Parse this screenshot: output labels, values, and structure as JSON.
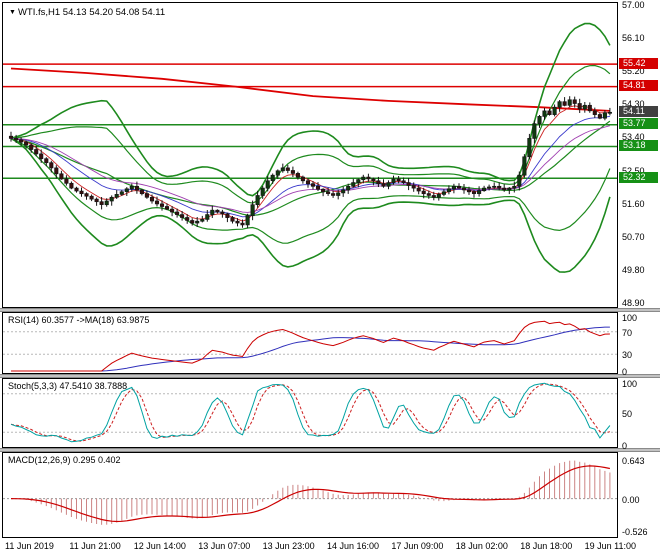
{
  "title": {
    "marker": "▼",
    "text": "WTI.fs,H1 54.13 54.20 54.08 54.11"
  },
  "colors": {
    "background": "#ffffff",
    "border": "#000000",
    "wick": "#141414",
    "bull": "#0f3a0f",
    "bear": "#3a0f0f",
    "red_line": "#dd0000",
    "green_line": "#1e8a1e",
    "ma_fast": "#cc2222",
    "ma_mid": "#3a3acc",
    "ma_slow_thin": "#a040b0",
    "badge_red": "#d40000",
    "badge_green": "#169016",
    "badge_current": "#404040",
    "rsi": "#cc0000",
    "rsi_ma": "#3030bb",
    "stoch": "#00a2a2",
    "stoch_signal": "#cc2020",
    "macd_hist": "#cc8484",
    "macd_signal": "#cc0000",
    "level_dash": "#b8b8b8"
  },
  "chart_data": {
    "type": "candlestick+indicators",
    "symbol": "WTI.fs",
    "timeframe": "H1",
    "ohlc_quote": {
      "open": "54.13",
      "high": "54.20",
      "low": "54.08",
      "close": "54.11"
    },
    "y_axis": {
      "min": 48.9,
      "max": 57.0,
      "ticks": [
        "57.00",
        "56.10",
        "55.20",
        "54.30",
        "53.40",
        "52.50",
        "51.60",
        "50.70",
        "49.80",
        "48.90"
      ]
    },
    "x_labels": [
      "11 Jun 2019",
      "11 Jun 21:00",
      "12 Jun 14:00",
      "13 Jun 07:00",
      "13 Jun 23:00",
      "14 Jun 16:00",
      "17 Jun 09:00",
      "18 Jun 02:00",
      "18 Jun 18:00",
      "19 Jun 11:00"
    ],
    "closes": [
      53.4,
      53.36,
      53.3,
      53.22,
      53.1,
      52.98,
      52.85,
      52.74,
      52.6,
      52.44,
      52.3,
      52.18,
      52.05,
      51.97,
      51.9,
      51.83,
      51.75,
      51.68,
      51.6,
      51.7,
      51.8,
      51.88,
      51.95,
      52.03,
      52.1,
      52.0,
      51.9,
      51.8,
      51.7,
      51.62,
      51.55,
      51.48,
      51.4,
      51.33,
      51.25,
      51.17,
      51.1,
      51.15,
      51.2,
      51.33,
      51.45,
      51.4,
      51.35,
      51.25,
      51.15,
      51.1,
      51.05,
      51.3,
      51.6,
      51.85,
      52.05,
      52.25,
      52.4,
      52.52,
      52.6,
      52.53,
      52.45,
      52.35,
      52.25,
      52.17,
      52.1,
      52.02,
      51.95,
      51.9,
      51.85,
      51.92,
      52.0,
      52.1,
      52.2,
      52.28,
      52.35,
      52.3,
      52.25,
      52.17,
      52.1,
      52.2,
      52.3,
      52.25,
      52.2,
      52.12,
      52.05,
      51.97,
      51.9,
      51.85,
      51.8,
      51.88,
      51.95,
      52.03,
      52.1,
      52.05,
      52.0,
      51.95,
      51.9,
      51.98,
      52.05,
      52.08,
      52.1,
      52.05,
      52.0,
      52.05,
      52.1,
      52.4,
      52.9,
      53.4,
      53.8,
      54.0,
      54.15,
      54.05,
      54.25,
      54.4,
      54.3,
      54.45,
      54.35,
      54.2,
      54.3,
      54.15,
      54.05,
      53.95,
      54.1,
      54.11
    ],
    "hlines": [
      {
        "price": 55.42,
        "color": "red"
      },
      {
        "price": 54.81,
        "color": "red"
      },
      {
        "price": 53.77,
        "color": "green"
      },
      {
        "price": 53.18,
        "color": "green"
      },
      {
        "price": 52.32,
        "color": "green"
      }
    ],
    "current_price": "54.11",
    "trend_line_red": [
      [
        0,
        55.3
      ],
      [
        15,
        55.18
      ],
      [
        30,
        55.02
      ],
      [
        45,
        54.8
      ],
      [
        60,
        54.55
      ],
      [
        75,
        54.42
      ],
      [
        90,
        54.33
      ],
      [
        105,
        54.25
      ],
      [
        119,
        54.15
      ]
    ],
    "bollinger": {
      "period": 20,
      "inner_k": 2.0,
      "outer_k": 3.2
    },
    "indicators": {
      "rsi": {
        "label": "RSI(14) 60.3577  ->MA(18) 63.9875",
        "period": 14,
        "ma_period": 18,
        "levels": [
          70,
          30
        ],
        "ticks": [
          "100",
          "70",
          "30",
          "0"
        ],
        "current": 60.3577,
        "current_ma": 63.9875
      },
      "stoch": {
        "label": "Stoch(5,3,3) 47.5410 38.7888",
        "k": 5,
        "slow": 3,
        "d": 3,
        "levels": [
          80,
          20
        ],
        "ticks": [
          "100",
          "50",
          "0"
        ],
        "current_k": 47.541,
        "current_d": 38.7888
      },
      "macd": {
        "label": "MACD(12,26,9) 0.295 0.402",
        "fast": 12,
        "slow": 26,
        "signal": 9,
        "ticks": [
          "0.643",
          "0.00",
          "-0.526"
        ],
        "range": [
          -0.6,
          0.72
        ],
        "current": 0.295,
        "current_signal": 0.402
      }
    }
  }
}
